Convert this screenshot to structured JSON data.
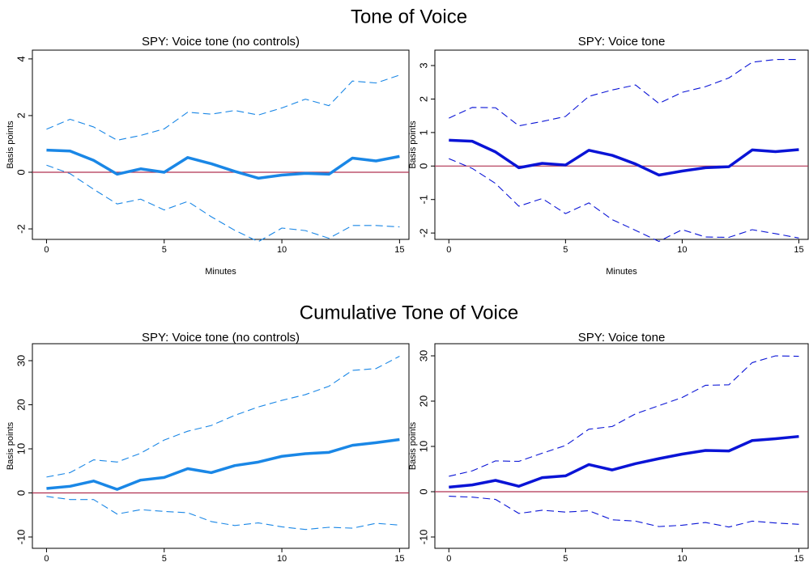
{
  "headings": [
    "Tone of Voice",
    "Cumulative Tone of Voice"
  ],
  "chart_data": [
    {
      "type": "line",
      "title": "SPY: Voice tone (no controls)",
      "xlabel": "Minutes",
      "ylabel": "Basis points",
      "x": [
        0,
        1,
        2,
        3,
        4,
        5,
        6,
        7,
        8,
        9,
        10,
        11,
        12,
        13,
        14,
        15
      ],
      "xlim": [
        -0.6,
        15.4
      ],
      "xticks": [
        0,
        5,
        10,
        15
      ],
      "ylim": [
        -2.37,
        4.31
      ],
      "yticks": [
        -2,
        0,
        2,
        4
      ],
      "hline": 0,
      "hline_color": "#b03050",
      "series": [
        {
          "color": "#1a87e6",
          "style": "solid",
          "values": [
            0.78,
            0.75,
            0.42,
            -0.07,
            0.12,
            0.0,
            0.52,
            0.3,
            0.03,
            -0.21,
            -0.1,
            -0.04,
            -0.07,
            0.5,
            0.4,
            0.56
          ]
        },
        {
          "color": "#1a87e6",
          "style": "dashed",
          "values": [
            1.52,
            1.87,
            1.6,
            1.13,
            1.3,
            1.53,
            2.12,
            2.05,
            2.18,
            2.02,
            2.27,
            2.58,
            2.35,
            3.22,
            3.15,
            3.43
          ]
        },
        {
          "color": "#1a87e6",
          "style": "dashed",
          "values": [
            0.25,
            -0.05,
            -0.6,
            -1.12,
            -0.95,
            -1.33,
            -1.03,
            -1.57,
            -2.05,
            -2.45,
            -1.97,
            -2.06,
            -2.33,
            -1.88,
            -1.88,
            -1.93
          ]
        }
      ]
    },
    {
      "type": "line",
      "title": "SPY: Voice tone",
      "xlabel": "Minutes",
      "ylabel": "Basis points",
      "x": [
        0,
        1,
        2,
        3,
        4,
        5,
        6,
        7,
        8,
        9,
        10,
        11,
        12,
        13,
        14,
        15
      ],
      "xlim": [
        -0.6,
        15.4
      ],
      "xticks": [
        0,
        5,
        10,
        15
      ],
      "ylim": [
        -2.19,
        3.46
      ],
      "yticks": [
        -2,
        -1,
        0,
        1,
        2,
        3
      ],
      "hline": 0,
      "hline_color": "#b03050",
      "series": [
        {
          "color": "#0a14d6",
          "style": "solid",
          "values": [
            0.77,
            0.74,
            0.42,
            -0.05,
            0.08,
            0.03,
            0.47,
            0.32,
            0.06,
            -0.27,
            -0.15,
            -0.05,
            -0.02,
            0.48,
            0.43,
            0.49
          ]
        },
        {
          "color": "#0a14d6",
          "style": "dashed",
          "values": [
            1.43,
            1.75,
            1.74,
            1.2,
            1.33,
            1.48,
            2.08,
            2.27,
            2.42,
            1.87,
            2.2,
            2.37,
            2.63,
            3.1,
            3.18,
            3.18
          ]
        },
        {
          "color": "#0a14d6",
          "style": "dashed",
          "values": [
            0.22,
            -0.07,
            -0.52,
            -1.2,
            -0.97,
            -1.42,
            -1.1,
            -1.6,
            -1.92,
            -2.25,
            -1.9,
            -2.12,
            -2.13,
            -1.9,
            -2.02,
            -2.15
          ]
        }
      ]
    },
    {
      "type": "line",
      "title": "SPY: Voice tone (no controls)",
      "xlabel": "Minutes",
      "ylabel": "Basis points",
      "x": [
        0,
        1,
        2,
        3,
        4,
        5,
        6,
        7,
        8,
        9,
        10,
        11,
        12,
        13,
        14,
        15
      ],
      "xlim": [
        -0.6,
        15.4
      ],
      "xticks": [
        0,
        5,
        10,
        15
      ],
      "ylim": [
        -12.57,
        33.85
      ],
      "yticks": [
        -10,
        0,
        10,
        20,
        30
      ],
      "hline": 0,
      "hline_color": "#b03050",
      "series": [
        {
          "color": "#1a87e6",
          "style": "solid",
          "values": [
            1.0,
            1.5,
            2.7,
            0.8,
            2.9,
            3.5,
            5.5,
            4.6,
            6.2,
            7.0,
            8.3,
            8.9,
            9.2,
            10.8,
            11.4,
            12.1
          ]
        },
        {
          "color": "#1a87e6",
          "style": "dashed",
          "values": [
            3.6,
            4.6,
            7.5,
            7.0,
            9.0,
            12.0,
            14.0,
            15.3,
            17.6,
            19.5,
            21.0,
            22.3,
            24.2,
            27.8,
            28.2,
            31.0
          ]
        },
        {
          "color": "#1a87e6",
          "style": "dashed",
          "values": [
            -0.8,
            -1.5,
            -1.5,
            -4.8,
            -3.8,
            -4.2,
            -4.5,
            -6.5,
            -7.4,
            -6.8,
            -7.7,
            -8.3,
            -7.8,
            -8.0,
            -6.9,
            -7.3
          ]
        }
      ]
    },
    {
      "type": "line",
      "title": "SPY: Voice tone",
      "xlabel": "Minutes",
      "ylabel": "Basis points",
      "x": [
        0,
        1,
        2,
        3,
        4,
        5,
        6,
        7,
        8,
        9,
        10,
        11,
        12,
        13,
        14,
        15
      ],
      "xlim": [
        -0.6,
        15.4
      ],
      "xticks": [
        0,
        5,
        10,
        15
      ],
      "ylim": [
        -12.5,
        32.68
      ],
      "yticks": [
        -10,
        0,
        10,
        20,
        30
      ],
      "hline": 0,
      "hline_color": "#b03050",
      "series": [
        {
          "color": "#0a14d6",
          "style": "solid",
          "values": [
            1.0,
            1.5,
            2.5,
            1.2,
            3.1,
            3.5,
            6.0,
            4.8,
            6.2,
            7.3,
            8.3,
            9.1,
            9.0,
            11.3,
            11.7,
            12.2
          ]
        },
        {
          "color": "#0a14d6",
          "style": "dashed",
          "values": [
            3.4,
            4.6,
            6.8,
            6.7,
            8.5,
            10.2,
            13.8,
            14.4,
            17.2,
            19.0,
            20.8,
            23.5,
            23.6,
            28.5,
            30.0,
            29.9
          ]
        },
        {
          "color": "#0a14d6",
          "style": "dashed",
          "values": [
            -1.0,
            -1.2,
            -1.7,
            -4.8,
            -4.1,
            -4.5,
            -4.2,
            -6.2,
            -6.5,
            -7.7,
            -7.4,
            -6.8,
            -7.8,
            -6.5,
            -6.9,
            -7.2
          ]
        }
      ]
    }
  ]
}
